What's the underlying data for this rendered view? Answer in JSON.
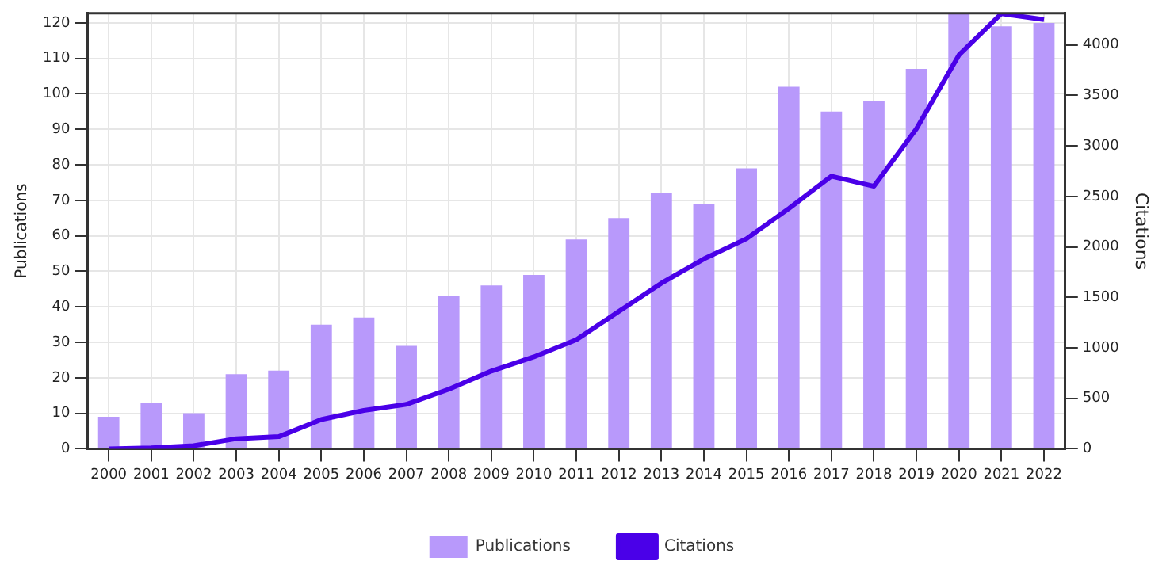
{
  "chart_data": {
    "type": "bar",
    "ylabel": "Publications",
    "y2label": "Citations",
    "categories": [
      "2000",
      "2001",
      "2002",
      "2003",
      "2004",
      "2005",
      "2006",
      "2007",
      "2008",
      "2009",
      "2010",
      "2011",
      "2012",
      "2013",
      "2014",
      "2015",
      "2016",
      "2017",
      "2018",
      "2019",
      "2020",
      "2021",
      "2022"
    ],
    "series": [
      {
        "name": "Publications",
        "color": "#b899fb",
        "values": [
          9,
          13,
          10,
          21,
          22,
          35,
          37,
          29,
          43,
          46,
          49,
          59,
          65,
          72,
          69,
          79,
          102,
          95,
          98,
          107,
          122.7,
          119,
          120
        ]
      },
      {
        "name": "Citations",
        "type": "line",
        "axis": "y2",
        "color": "#4a00e8",
        "values": [
          0,
          10,
          30,
          100,
          120,
          290,
          380,
          440,
          590,
          770,
          910,
          1080,
          1360,
          1640,
          1880,
          2080,
          2380,
          2700,
          2600,
          3170,
          3900,
          4310,
          4250
        ]
      }
    ],
    "ylim": [
      0,
      122.7
    ],
    "yticks": [
      0,
      10,
      20,
      30,
      40,
      50,
      60,
      70,
      80,
      90,
      100,
      110,
      120
    ],
    "y2lim": [
      0,
      4313
    ],
    "y2ticks": [
      0,
      500,
      1000,
      1500,
      2000,
      2500,
      3000,
      3500,
      4000
    ],
    "grid": true,
    "legend": "bottom",
    "marker": "none",
    "line_style": "solid"
  }
}
